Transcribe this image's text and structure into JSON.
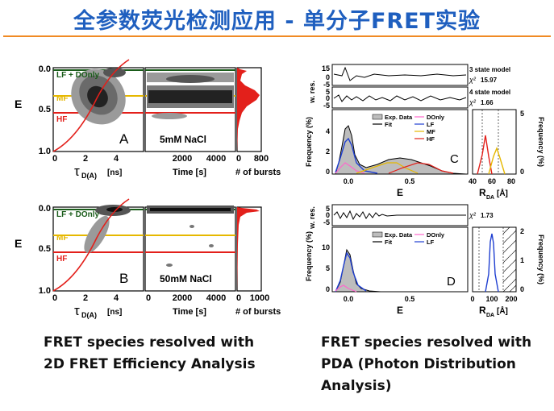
{
  "title": "全参数荧光检测应用 - 单分子FRET实验",
  "colors": {
    "title": "#1f5fbf",
    "rule": "#f08a24",
    "lf": "#1a5c1a",
    "mf": "#e6b800",
    "hf": "#e3201b",
    "donly": "#ff66cc",
    "lf_fit": "#1f3fd1"
  },
  "left_caption": [
    "FRET species resolved with",
    "2D FRET Efficiency Analysis"
  ],
  "right_caption": [
    "FRET species resolved with",
    "PDA (Photon Distribution",
    "Analysis)"
  ],
  "panel_a": {
    "letter": "A",
    "condition": "5mM NaCl",
    "y_label": "E",
    "y_ticks": [
      "0.0",
      "0.5",
      "1.0"
    ],
    "tau_ticks": [
      "0",
      "2",
      "4"
    ],
    "tau_label": "τ",
    "tau_sub": "D(A)",
    "tau_unit": "[ns]",
    "time_ticks": [
      "2000",
      "4000"
    ],
    "time_label": "Time [s]",
    "bursts_ticks": [
      "0",
      "800"
    ],
    "bursts_label": "# of bursts",
    "lf": "LF + DOnly",
    "mf": "MF",
    "hf": "HF"
  },
  "panel_b": {
    "letter": "B",
    "condition": "50mM NaCl",
    "y_label": "E",
    "y_ticks": [
      "0.0",
      "0.5",
      "1.0"
    ],
    "tau_ticks": [
      "0",
      "2",
      "4"
    ],
    "tau_label": "τ",
    "tau_sub": "D(A)",
    "tau_unit": "[ns]",
    "time_ticks": [
      "0",
      "2000",
      "4000"
    ],
    "time_label": "Time [s]",
    "bursts_ticks": [
      "0",
      "1000"
    ],
    "bursts_label": "# of bursts",
    "lf": "LF + DOnly",
    "mf": "MF",
    "hf": "HF"
  },
  "panel_c": {
    "letter": "C",
    "wres_label": "w. res.",
    "wres_ticks_top": [
      "15",
      "0",
      "-5"
    ],
    "wres_ticks_bot": [
      "5",
      "0",
      "-5"
    ],
    "model3": "3 state model",
    "chi3": "χ²",
    "chi3_val": "15.97",
    "model4": "4 state model",
    "chi4": "χ²",
    "chi4_val": "1.66",
    "freq_label": "Frequency (%)",
    "freq_ticks": [
      "0",
      "2",
      "4"
    ],
    "x_ticks": [
      "0.0",
      "0.5"
    ],
    "x_label": "E",
    "legend": [
      "Exp. Data",
      "Fit",
      "DOnly",
      "LF",
      "MF",
      "HF"
    ],
    "r_ticks": [
      "40",
      "60",
      "80"
    ],
    "r_label": "R",
    "r_sub": "DA",
    "r_unit": "[Å]",
    "r_freq_ticks": [
      "0",
      "5"
    ]
  },
  "panel_d": {
    "letter": "D",
    "wres_label": "w. res.",
    "wres_ticks": [
      "5",
      "0",
      "-5"
    ],
    "chi": "χ²",
    "chi_val": "1.73",
    "freq_label": "Frequency (%)",
    "freq_ticks": [
      "0",
      "5",
      "10"
    ],
    "x_ticks": [
      "0.0",
      "0.5"
    ],
    "x_label": "E",
    "legend": [
      "Exp. Data",
      "Fit",
      "DOnly",
      "LF"
    ],
    "r_ticks": [
      "0",
      "100",
      "200"
    ],
    "r_label": "R",
    "r_sub": "DA",
    "r_unit": "[Å]",
    "r_freq_ticks": [
      "0",
      "1",
      "2"
    ]
  }
}
